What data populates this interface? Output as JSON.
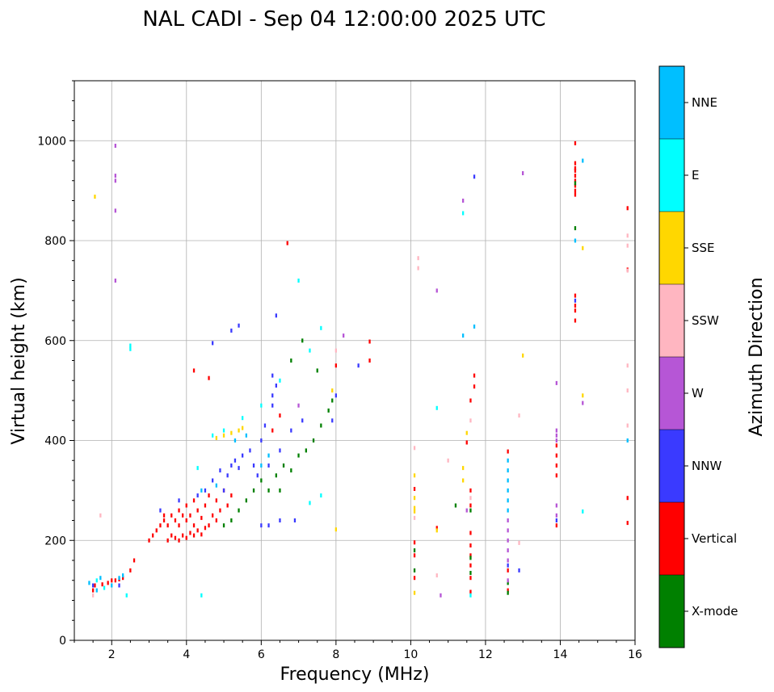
{
  "chart_data": {
    "type": "scatter",
    "title": "NAL CADI - Sep 04 12:00:00 2025 UTC",
    "xlabel": "Frequency (MHz)",
    "ylabel": "Virtual height (km)",
    "xlim": [
      1,
      16
    ],
    "ylim": [
      0,
      1120
    ],
    "xticks": [
      2,
      4,
      6,
      8,
      10,
      12,
      14,
      16
    ],
    "yticks": [
      0,
      200,
      400,
      600,
      800,
      1000
    ],
    "grid": true,
    "cell_width_mhz": 0.05,
    "cell_height_km": 8,
    "colorbar": {
      "label": "Azimuth Direction",
      "categories": [
        {
          "name": "X-mode",
          "color": "#008000"
        },
        {
          "name": "Vertical",
          "color": "#ff0000"
        },
        {
          "name": "NNW",
          "color": "#3a3aff"
        },
        {
          "name": "W",
          "color": "#b656d6"
        },
        {
          "name": "SSW",
          "color": "#ffb6c1"
        },
        {
          "name": "SSE",
          "color": "#ffd700"
        },
        {
          "name": "E",
          "color": "#00ffff"
        },
        {
          "name": "NNE",
          "color": "#00bfff"
        }
      ]
    },
    "series": [
      {
        "name": "Vertical",
        "color": "#ff0000",
        "points": [
          [
            1.5,
            100
          ],
          [
            1.55,
            110
          ],
          [
            1.75,
            112
          ],
          [
            1.9,
            115
          ],
          [
            2.0,
            120
          ],
          [
            2.1,
            120
          ],
          [
            2.2,
            122
          ],
          [
            2.3,
            125
          ],
          [
            2.5,
            140
          ],
          [
            2.6,
            160
          ],
          [
            3.0,
            200
          ],
          [
            3.1,
            210
          ],
          [
            3.2,
            220
          ],
          [
            3.3,
            230
          ],
          [
            3.4,
            240
          ],
          [
            3.5,
            200
          ],
          [
            3.5,
            230
          ],
          [
            3.6,
            210
          ],
          [
            3.6,
            250
          ],
          [
            3.7,
            205
          ],
          [
            3.7,
            240
          ],
          [
            3.8,
            200
          ],
          [
            3.8,
            230
          ],
          [
            3.8,
            260
          ],
          [
            3.9,
            210
          ],
          [
            3.9,
            250
          ],
          [
            4.0,
            205
          ],
          [
            4.0,
            240
          ],
          [
            4.0,
            270
          ],
          [
            4.1,
            215
          ],
          [
            4.1,
            250
          ],
          [
            4.2,
            210
          ],
          [
            4.2,
            230
          ],
          [
            4.2,
            280
          ],
          [
            4.3,
            220
          ],
          [
            4.3,
            260
          ],
          [
            4.4,
            212
          ],
          [
            4.4,
            245
          ],
          [
            4.5,
            225
          ],
          [
            4.5,
            270
          ],
          [
            4.6,
            230
          ],
          [
            4.6,
            290
          ],
          [
            4.7,
            250
          ],
          [
            4.8,
            240
          ],
          [
            4.8,
            280
          ],
          [
            4.9,
            260
          ],
          [
            5.0,
            300
          ],
          [
            5.1,
            270
          ],
          [
            5.2,
            290
          ],
          [
            3.4,
            250
          ],
          [
            4.2,
            540
          ],
          [
            4.6,
            525
          ],
          [
            6.3,
            420
          ],
          [
            6.5,
            450
          ],
          [
            6.7,
            795
          ],
          [
            8.0,
            550
          ],
          [
            8.9,
            560
          ],
          [
            8.9,
            598
          ],
          [
            10.1,
            196
          ],
          [
            10.1,
            170
          ],
          [
            10.1,
            125
          ],
          [
            10.1,
            303
          ],
          [
            10.7,
            225
          ],
          [
            11.6,
            300
          ],
          [
            11.6,
            270
          ],
          [
            11.6,
            215
          ],
          [
            11.6,
            190
          ],
          [
            11.6,
            170
          ],
          [
            11.6,
            150
          ],
          [
            11.6,
            125
          ],
          [
            11.6,
            97
          ],
          [
            11.7,
            530
          ],
          [
            11.7,
            508
          ],
          [
            11.6,
            480
          ],
          [
            11.5,
            396
          ],
          [
            12.6,
            378
          ],
          [
            12.6,
            140
          ],
          [
            12.6,
            100
          ],
          [
            13.9,
            390
          ],
          [
            13.9,
            370
          ],
          [
            13.9,
            350
          ],
          [
            13.9,
            330
          ],
          [
            13.9,
            230
          ],
          [
            14.4,
            995
          ],
          [
            14.4,
            955
          ],
          [
            14.4,
            945
          ],
          [
            14.4,
            940
          ],
          [
            14.4,
            930
          ],
          [
            14.4,
            920
          ],
          [
            14.4,
            910
          ],
          [
            14.4,
            900
          ],
          [
            14.4,
            892
          ],
          [
            14.4,
            690
          ],
          [
            14.4,
            670
          ],
          [
            14.4,
            660
          ],
          [
            14.4,
            640
          ],
          [
            15.8,
            865
          ],
          [
            15.8,
            742
          ],
          [
            15.8,
            285
          ],
          [
            15.8,
            235
          ]
        ]
      },
      {
        "name": "NNW",
        "color": "#3a3aff",
        "points": [
          [
            1.5,
            110
          ],
          [
            2.2,
            110
          ],
          [
            3.3,
            260
          ],
          [
            3.8,
            280
          ],
          [
            4.3,
            290
          ],
          [
            4.5,
            300
          ],
          [
            4.7,
            320
          ],
          [
            4.9,
            340
          ],
          [
            5.0,
            300
          ],
          [
            5.1,
            330
          ],
          [
            5.2,
            350
          ],
          [
            5.3,
            360
          ],
          [
            5.4,
            345
          ],
          [
            5.5,
            370
          ],
          [
            5.7,
            380
          ],
          [
            5.8,
            350
          ],
          [
            5.9,
            330
          ],
          [
            6.0,
            400
          ],
          [
            6.1,
            430
          ],
          [
            6.2,
            350
          ],
          [
            6.3,
            470
          ],
          [
            6.3,
            490
          ],
          [
            6.3,
            530
          ],
          [
            6.4,
            510
          ],
          [
            6.4,
            650
          ],
          [
            5.2,
            620
          ],
          [
            5.4,
            630
          ],
          [
            4.7,
            595
          ],
          [
            6.0,
            230
          ],
          [
            6.2,
            230
          ],
          [
            6.5,
            240
          ],
          [
            6.9,
            240
          ],
          [
            6.8,
            420
          ],
          [
            7.1,
            440
          ],
          [
            6.5,
            380
          ],
          [
            8.6,
            550
          ],
          [
            8.0,
            490
          ],
          [
            7.9,
            440
          ],
          [
            11.7,
            928
          ],
          [
            12.9,
            140
          ],
          [
            12.6,
            150
          ],
          [
            13.9,
            240
          ],
          [
            14.4,
            680
          ]
        ]
      },
      {
        "name": "X-mode",
        "color": "#008000",
        "points": [
          [
            5.0,
            230
          ],
          [
            5.2,
            240
          ],
          [
            5.4,
            260
          ],
          [
            5.6,
            280
          ],
          [
            5.8,
            300
          ],
          [
            6.0,
            320
          ],
          [
            6.2,
            300
          ],
          [
            6.4,
            330
          ],
          [
            6.6,
            350
          ],
          [
            6.8,
            340
          ],
          [
            7.0,
            370
          ],
          [
            7.2,
            380
          ],
          [
            7.4,
            400
          ],
          [
            7.6,
            430
          ],
          [
            7.8,
            460
          ],
          [
            7.9,
            480
          ],
          [
            7.5,
            540
          ],
          [
            7.1,
            600
          ],
          [
            6.8,
            560
          ],
          [
            6.5,
            300
          ],
          [
            10.1,
            140
          ],
          [
            10.1,
            180
          ],
          [
            11.2,
            270
          ],
          [
            11.6,
            165
          ],
          [
            11.6,
            135
          ],
          [
            11.6,
            260
          ],
          [
            12.6,
            95
          ],
          [
            12.6,
            115
          ],
          [
            14.4,
            825
          ],
          [
            14.4,
            915
          ]
        ]
      },
      {
        "name": "NNE",
        "color": "#00bfff",
        "points": [
          [
            1.4,
            115
          ],
          [
            1.6,
            100
          ],
          [
            1.7,
            125
          ],
          [
            2.0,
            110
          ],
          [
            2.2,
            125
          ],
          [
            2.3,
            130
          ],
          [
            4.4,
            300
          ],
          [
            4.8,
            310
          ],
          [
            5.3,
            400
          ],
          [
            5.6,
            410
          ],
          [
            6.0,
            350
          ],
          [
            6.2,
            370
          ],
          [
            12.6,
            340
          ],
          [
            12.6,
            320
          ],
          [
            12.6,
            300
          ],
          [
            12.6,
            280
          ],
          [
            12.6,
            260
          ],
          [
            12.6,
            360
          ],
          [
            14.4,
            800
          ],
          [
            14.6,
            960
          ],
          [
            15.8,
            400
          ],
          [
            11.4,
            610
          ],
          [
            11.7,
            628
          ]
        ]
      },
      {
        "name": "E",
        "color": "#00ffff",
        "points": [
          [
            1.6,
            120
          ],
          [
            1.8,
            105
          ],
          [
            2.4,
            90
          ],
          [
            2.5,
            590
          ],
          [
            2.5,
            583
          ],
          [
            4.3,
            345
          ],
          [
            4.4,
            90
          ],
          [
            4.7,
            410
          ],
          [
            5.0,
            420
          ],
          [
            5.5,
            445
          ],
          [
            6.0,
            470
          ],
          [
            6.5,
            520
          ],
          [
            7.0,
            720
          ],
          [
            7.3,
            580
          ],
          [
            7.6,
            625
          ],
          [
            7.3,
            275
          ],
          [
            7.6,
            290
          ],
          [
            10.7,
            465
          ],
          [
            11.4,
            855
          ],
          [
            11.6,
            90
          ],
          [
            14.6,
            258
          ]
        ]
      },
      {
        "name": "SSE",
        "color": "#ffd700",
        "points": [
          [
            1.55,
            888
          ],
          [
            4.8,
            405
          ],
          [
            5.0,
            410
          ],
          [
            5.2,
            415
          ],
          [
            5.4,
            420
          ],
          [
            5.5,
            425
          ],
          [
            7.9,
            500
          ],
          [
            8.0,
            222
          ],
          [
            10.1,
            95
          ],
          [
            10.1,
            258
          ],
          [
            10.1,
            265
          ],
          [
            10.1,
            285
          ],
          [
            10.1,
            330
          ],
          [
            10.7,
            220
          ],
          [
            11.4,
            345
          ],
          [
            11.4,
            320
          ],
          [
            11.5,
            415
          ],
          [
            13.0,
            570
          ],
          [
            14.6,
            490
          ],
          [
            14.6,
            785
          ]
        ]
      },
      {
        "name": "W",
        "color": "#b656d6",
        "points": [
          [
            2.1,
            990
          ],
          [
            2.1,
            930
          ],
          [
            2.1,
            920
          ],
          [
            2.1,
            860
          ],
          [
            2.1,
            720
          ],
          [
            8.2,
            610
          ],
          [
            10.7,
            700
          ],
          [
            10.8,
            90
          ],
          [
            11.4,
            880
          ],
          [
            11.5,
            260
          ],
          [
            12.6,
            240
          ],
          [
            12.6,
            220
          ],
          [
            12.6,
            200
          ],
          [
            12.6,
            180
          ],
          [
            12.6,
            160
          ],
          [
            12.6,
            120
          ],
          [
            13.0,
            935
          ],
          [
            13.9,
            420
          ],
          [
            13.9,
            410
          ],
          [
            13.9,
            400
          ],
          [
            13.9,
            270
          ],
          [
            13.9,
            250
          ],
          [
            13.9,
            515
          ],
          [
            14.6,
            475
          ],
          [
            7.0,
            470
          ]
        ]
      },
      {
        "name": "SSW",
        "color": "#ffb6c1",
        "points": [
          [
            1.5,
            90
          ],
          [
            1.7,
            250
          ],
          [
            10.1,
            245
          ],
          [
            10.1,
            385
          ],
          [
            10.2,
            765
          ],
          [
            10.2,
            745
          ],
          [
            10.7,
            130
          ],
          [
            11.0,
            360
          ],
          [
            11.6,
            285
          ],
          [
            11.6,
            440
          ],
          [
            12.9,
            450
          ],
          [
            12.9,
            195
          ],
          [
            15.8,
            810
          ],
          [
            15.8,
            790
          ],
          [
            15.8,
            740
          ],
          [
            15.8,
            550
          ],
          [
            15.8,
            500
          ],
          [
            15.8,
            430
          ],
          [
            8.0,
            580
          ]
        ]
      }
    ]
  }
}
